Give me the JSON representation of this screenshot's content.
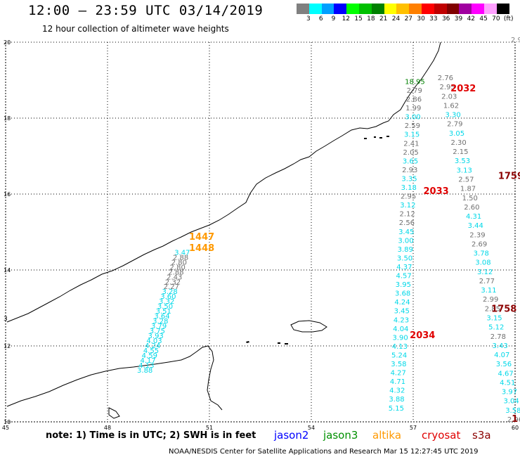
{
  "header": {
    "title": "12:00 — 23:59 UTC 03/14/2019",
    "subtitle": "12 hour collection of altimeter wave heights"
  },
  "colorbar": {
    "labels": [
      "3",
      "6",
      "9",
      "12",
      "15",
      "18",
      "21",
      "24",
      "27",
      "30",
      "33",
      "36",
      "39",
      "42",
      "45",
      "70",
      "(ft)"
    ],
    "colors": [
      "#808080",
      "#00ffff",
      "#00a0ff",
      "#0000ff",
      "#00ff00",
      "#00c000",
      "#008000",
      "#ffff00",
      "#ffc000",
      "#ff8000",
      "#ff0000",
      "#c00000",
      "#800000",
      "#a000a0",
      "#ff00ff",
      "#ffa0ff",
      "#000000"
    ]
  },
  "map": {
    "lon_range": [
      45,
      60
    ],
    "lat_range": [
      10,
      20
    ],
    "lon_ticks": [
      "45",
      "48",
      "51",
      "54",
      "57",
      "60"
    ],
    "lat_ticks": [
      "10",
      "12",
      "14",
      "16",
      "18",
      "20"
    ]
  },
  "tracks": [
    {
      "name": "track-left",
      "color": "#00e5ee",
      "lon_start": 50.2,
      "lat_start": 14.4,
      "lon_end": 49.1,
      "lat_end": 11.3,
      "values": [
        "3.47",
        "2.88",
        "2.80",
        "2.80",
        "2.88",
        "2.43",
        "2.32",
        "2.27",
        "3.28",
        "3.60",
        "3.32",
        "3.50",
        "3.51",
        "3.64",
        "3.28",
        "3.79",
        "3.75",
        "3.93",
        "4.03",
        "4.24",
        "4.55",
        "4.59",
        "4.17",
        "4.13",
        "3.88"
      ]
    },
    {
      "name": "track-mid",
      "color": "#00e5ee",
      "lon_start": 57.05,
      "lat_start": 18.9,
      "lon_end": 56.5,
      "lat_end": 10.3,
      "values": [
        "18.95",
        "2.79",
        "2.86",
        "1.99",
        "3.00",
        "2.59",
        "3.15",
        "2.41",
        "2.05",
        "3.65",
        "2.93",
        "3.35",
        "3.18",
        "2.95",
        "3.12",
        "2.12",
        "2.56",
        "3.45",
        "3.00",
        "3.89",
        "3.50",
        "4.37",
        "4.57",
        "3.95",
        "3.68",
        "4.24",
        "3.45",
        "4.23",
        "4.04",
        "3.90",
        "4.13",
        "5.24",
        "3.58",
        "4.27",
        "4.71",
        "4.32",
        "3.88",
        "5.15"
      ]
    },
    {
      "name": "track-right",
      "color": "#00e5ee",
      "lon_start": 57.95,
      "lat_start": 19.0,
      "lon_end": 60.0,
      "lat_end": 10.0,
      "values": [
        "2.76",
        "2.95",
        "2.03",
        "1.62",
        "3.30",
        "2.79",
        "3.05",
        "2.30",
        "2.15",
        "3.53",
        "3.13",
        "2.57",
        "1.87",
        "1.50",
        "2.60",
        "4.31",
        "3.44",
        "2.39",
        "2.69",
        "3.78",
        "3.08",
        "3.12",
        "2.77",
        "3.11",
        "2.99",
        "2.85",
        "3.15",
        "5.12",
        "2.78",
        "3.43",
        "4.07",
        "3.56",
        "4.67",
        "4.51",
        "3.97",
        "3.04",
        "3.58",
        "2.96"
      ]
    }
  ],
  "time_labels": [
    {
      "text": "2032",
      "color": "#e00000",
      "lon": 58.1,
      "lat": 18.7
    },
    {
      "text": "1759",
      "color": "#8b0000",
      "lon": 59.5,
      "lat": 16.4
    },
    {
      "text": "2033",
      "color": "#e00000",
      "lon": 57.3,
      "lat": 16.0
    },
    {
      "text": "1447",
      "color": "#ff9900",
      "lon": 50.4,
      "lat": 14.8
    },
    {
      "text": "1448",
      "color": "#ff9900",
      "lon": 50.4,
      "lat": 14.5
    },
    {
      "text": "1758",
      "color": "#8b0000",
      "lon": 59.3,
      "lat": 12.9
    },
    {
      "text": "2034",
      "color": "#e00000",
      "lon": 56.9,
      "lat": 12.2
    },
    {
      "text": "1",
      "color": "#8b0000",
      "lon": 59.9,
      "lat": 10.0
    }
  ],
  "edge_values": {
    "right_top": "2.9",
    "right_left": "3"
  },
  "footer": {
    "note": "note: 1) Time is in UTC; 2) SWH is in feet",
    "satellites": [
      {
        "name": "jason2",
        "color": "#0000ff"
      },
      {
        "name": "jason3",
        "color": "#009000"
      },
      {
        "name": "altika",
        "color": "#ff9900"
      },
      {
        "name": "cryosat",
        "color": "#e00000"
      },
      {
        "name": "s3a",
        "color": "#8b0000"
      }
    ],
    "credit": "NOAA/NESDIS Center for Satellite Applications and Research     Mar 15 12:27:45 UTC 2019"
  }
}
